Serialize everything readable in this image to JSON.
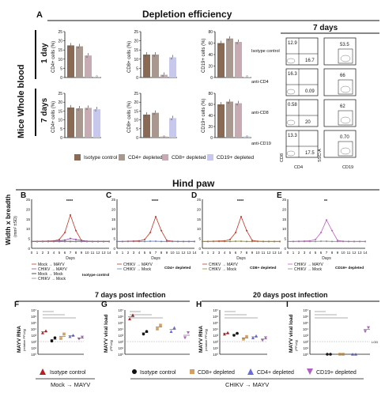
{
  "panelA": {
    "letter": "A",
    "title": "Depletion efficiency",
    "side_label": "Mice Whole blood",
    "row1": "1 day",
    "row2": "7 days",
    "ylabels": [
      "CD4+ cells (%)",
      "CD8+ cells (%)",
      "CD19+ cells (%)"
    ],
    "yticks": [
      "0",
      "5",
      "10",
      "15",
      "20",
      "25"
    ],
    "yticks_cd19": [
      "0",
      "20",
      "40",
      "60",
      "80"
    ],
    "legend": [
      "Isotype control",
      "CD4+ depleted",
      "CD8+ depleted",
      "CD19+ depleted"
    ],
    "colors": {
      "isotype": "#8a6a55",
      "cd4": "#a89890",
      "cd8": "#c8aab2",
      "cd19": "#c8c8ec"
    },
    "bars_1day": {
      "cd4": [
        17.5,
        17.0,
        12.0,
        0.4
      ],
      "cd8": [
        12.5,
        12.5,
        1.5,
        11.0
      ],
      "cd19": [
        60,
        68,
        62,
        1
      ]
    },
    "bars_7days": {
      "cd4": [
        17.0,
        16.5,
        16.8,
        16.0
      ],
      "cd8": [
        13.0,
        14.0,
        0.6,
        11.0
      ],
      "cd19": [
        60,
        65,
        62,
        2
      ]
    }
  },
  "flow": {
    "title": "7 days",
    "rows": [
      "Isotype control",
      "anti-CD4",
      "anti-CD8",
      "anti-CD19"
    ],
    "left_values": [
      [
        "12.9",
        "16.7"
      ],
      [
        "16.3",
        "0.09"
      ],
      [
        "0.58",
        "20"
      ],
      [
        "13.3",
        "17.5"
      ]
    ],
    "right_values": [
      "53.5",
      "66",
      "62",
      "0.70"
    ],
    "axes": {
      "left_x": "CD4",
      "left_y": "CD8",
      "right_x": "CD19",
      "right_y": "SSC-A"
    }
  },
  "panelB_title": "Hind paw",
  "pawcharts": [
    {
      "letter": "B",
      "legend": [
        "Mock → MAYV",
        "CHIKV → MAYV",
        "Mock → Mock",
        "CHIKV → Mock"
      ],
      "group": "Isotype control",
      "sig": "****"
    },
    {
      "letter": "C",
      "legend": [
        "CHIKV → MAYV",
        "CHIKV → Mock"
      ],
      "group": "CD4+ depleted",
      "sig": "****"
    },
    {
      "letter": "D",
      "legend": [
        "CHIKV → MAYV",
        "CHIKV → Mock"
      ],
      "group": "CD8+ depleted",
      "sig": "****"
    },
    {
      "letter": "E",
      "legend": [
        "CHIKV → MAYV",
        "CHIKV → Mock"
      ],
      "group": "CD19+ depleted",
      "sig": "**"
    }
  ],
  "paw_axis": {
    "ylabel": "Width x breadth",
    "yunit": "(mm² ±SD)",
    "yticks": [
      "0",
      "5",
      "10",
      "15",
      "20",
      "25"
    ],
    "xlabel": "Days",
    "days": [
      "0",
      "1",
      "2",
      "3",
      "4",
      "5",
      "6",
      "7",
      "8",
      "9",
      "10",
      "11",
      "12",
      "13",
      "14"
    ]
  },
  "chart_data": {
    "type": "line",
    "x": [
      0,
      1,
      2,
      3,
      4,
      5,
      6,
      7,
      8,
      9,
      10,
      11,
      12,
      13,
      14
    ],
    "series": [
      {
        "name": "Mock → MAYV",
        "values": [
          3.5,
          3.5,
          3.6,
          3.7,
          3.8,
          4.5,
          8,
          17,
          9,
          4,
          3.6,
          3.5,
          3.5,
          3.5,
          3.5
        ]
      },
      {
        "name": "CHIKV → MAYV",
        "values": [
          3.5,
          3.5,
          3.5,
          3.6,
          3.6,
          3.8,
          4.2,
          5,
          4.5,
          4,
          3.6,
          3.5,
          3.5,
          3.5,
          3.5
        ]
      },
      {
        "name": "Mock → Mock",
        "values": [
          3.5,
          3.5,
          3.5,
          3.5,
          3.5,
          3.5,
          3.5,
          3.5,
          3.5,
          3.5,
          3.5,
          3.5,
          3.5,
          3.5,
          3.5
        ]
      },
      {
        "name": "CHIKV → Mock",
        "values": [
          3.5,
          3.5,
          3.5,
          3.5,
          3.5,
          3.5,
          3.6,
          3.6,
          3.5,
          3.5,
          3.5,
          3.5,
          3.5,
          3.5,
          3.5
        ]
      }
    ],
    "ylim": [
      0,
      25
    ]
  },
  "bottom": {
    "title7": "7 days post infection",
    "title20": "20 days post infection",
    "F": {
      "letter": "F",
      "ylabel": "MAYV RNA",
      "yunit": "(relative PFU/g)"
    },
    "G": {
      "letter": "G",
      "ylabel": "MAYV viral load",
      "yunit": "(PFU/g)"
    },
    "H": {
      "letter": "H",
      "ylabel": "MAYV RNA",
      "yunit": "(relative PFU/g)"
    },
    "I": {
      "letter": "I",
      "ylabel": "MAYV viral load",
      "yunit": "(PFU/g)"
    },
    "yticks": [
      "10⁰",
      "10¹",
      "10²",
      "10³",
      "10⁴",
      "10⁵",
      "10⁶",
      "10⁷"
    ],
    "lod": "LOD",
    "legend_isotype_mock": "Isotype control",
    "legend": [
      "Isotype control",
      "CD8+ depleted",
      "CD4+ depleted",
      "CD19+ depleted"
    ],
    "group_mock": "Mock → MAYV",
    "group_chikv": "CHIKV → MAYV"
  }
}
